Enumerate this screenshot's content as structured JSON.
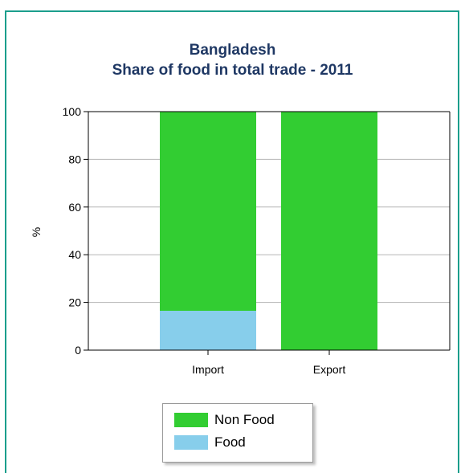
{
  "chart_data": {
    "type": "bar",
    "stacked": true,
    "title": [
      "Bangladesh",
      "Share of food in total trade - 2011"
    ],
    "xlabel": "",
    "ylabel": "%",
    "ylim": [
      0,
      100
    ],
    "yticks": [
      0,
      20,
      40,
      60,
      80,
      100
    ],
    "categories": [
      "Import",
      "Export"
    ],
    "series": [
      {
        "name": "Food",
        "values": [
          16.5,
          0
        ],
        "color": "#87ceeb"
      },
      {
        "name": "Non Food",
        "values": [
          83.5,
          100
        ],
        "color": "#32cd32"
      }
    ],
    "grid": true,
    "legend_position": "bottom-center",
    "legend_order": [
      "Non Food",
      "Food"
    ]
  }
}
